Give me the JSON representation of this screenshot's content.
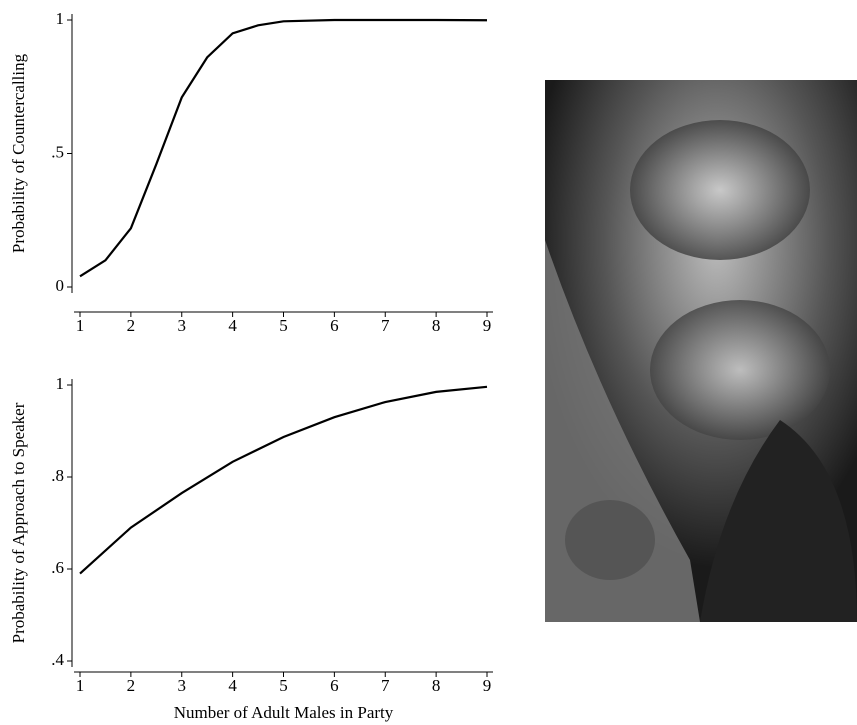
{
  "chart_data": [
    {
      "type": "line",
      "y_label": "Probability of Countercalling",
      "x": [
        1,
        1.5,
        2,
        2.5,
        3,
        3.5,
        4,
        4.5,
        5,
        6,
        7,
        8,
        9
      ],
      "series": [
        {
          "color": "#000000",
          "values": [
            0.04,
            0.1,
            0.22,
            0.46,
            0.71,
            0.86,
            0.95,
            0.98,
            0.995,
            1.0,
            1.0,
            1.0,
            0.999
          ]
        }
      ],
      "xlim": [
        1,
        9
      ],
      "xticks": [
        1,
        2,
        3,
        4,
        5,
        6,
        7,
        8,
        9
      ],
      "ylim": [
        0,
        1
      ],
      "yticks": [
        0,
        {
          "value": 0.5,
          "label": ".5"
        },
        1
      ]
    },
    {
      "type": "line",
      "x_label": "Number of Adult Males in Party",
      "y_label": "Probability of Approach to Speaker",
      "x": [
        1,
        2,
        3,
        4,
        5,
        6,
        7,
        8,
        9
      ],
      "series": [
        {
          "color": "#000000",
          "values": [
            0.59,
            0.69,
            0.765,
            0.833,
            0.887,
            0.93,
            0.963,
            0.985,
            0.996
          ]
        }
      ],
      "xlim": [
        1,
        9
      ],
      "xticks": [
        1,
        2,
        3,
        4,
        5,
        6,
        7,
        8,
        9
      ],
      "ylim": [
        0.4,
        1
      ],
      "yticks": [
        {
          "value": 0.4,
          "label": ".4"
        },
        {
          "value": 0.6,
          "label": ".6"
        },
        {
          "value": 0.8,
          "label": ".8"
        },
        1
      ]
    }
  ]
}
